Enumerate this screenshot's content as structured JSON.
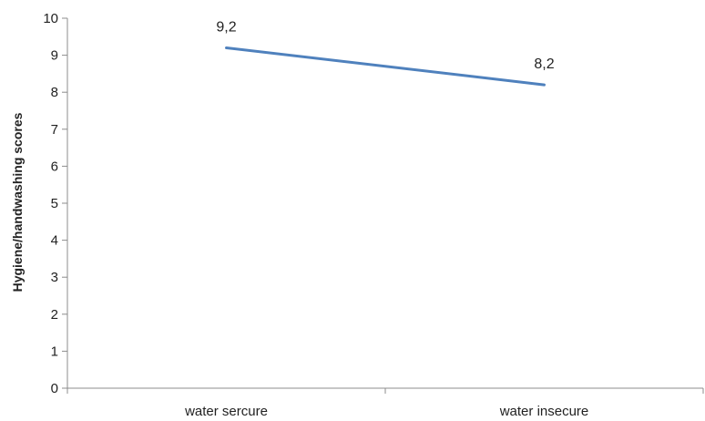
{
  "chart_data": {
    "type": "line",
    "title": "",
    "xlabel": "",
    "ylabel": "Hygiene/handwashing scores",
    "categories": [
      "water sercure",
      "water insecure"
    ],
    "series": [
      {
        "values": [
          9.2,
          8.2
        ],
        "data_labels": [
          "9,2",
          "8,2"
        ],
        "color": "#4f81bd"
      }
    ],
    "ylim": [
      0,
      10
    ],
    "yticks": [
      0,
      1,
      2,
      3,
      4,
      5,
      6,
      7,
      8,
      9,
      10
    ],
    "grid": false,
    "legend": "none"
  }
}
